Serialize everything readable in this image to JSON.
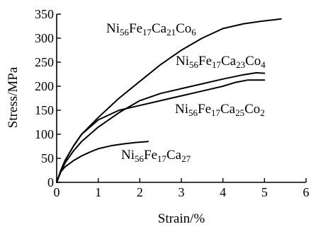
{
  "chart_data": {
    "type": "line",
    "xlabel": "Strain/%",
    "ylabel": "Stress/MPa",
    "xlim": [
      0,
      6
    ],
    "ylim": [
      0,
      350
    ],
    "x_ticks": [
      0,
      1,
      2,
      3,
      4,
      5,
      6
    ],
    "y_ticks": [
      0,
      50,
      100,
      150,
      200,
      250,
      300,
      350
    ],
    "grid": false,
    "legend": "none",
    "series": [
      {
        "id": "ca21",
        "label_parts": [
          [
            "Ni",
            ""
          ],
          [
            "56",
            "sub"
          ],
          [
            "Fe",
            ""
          ],
          [
            "17",
            "sub"
          ],
          [
            "Ca",
            ""
          ],
          [
            "21",
            "sub"
          ],
          [
            "Co",
            ""
          ],
          [
            "6",
            "sub"
          ]
        ],
        "x": [
          0,
          0.1,
          0.2,
          0.4,
          0.6,
          1.0,
          1.5,
          2.0,
          2.5,
          3.0,
          3.5,
          4.0,
          4.5,
          4.9,
          5.2,
          5.4
        ],
        "y": [
          0,
          25,
          45,
          75,
          100,
          135,
          175,
          210,
          245,
          275,
          300,
          320,
          330,
          335,
          338,
          340
        ]
      },
      {
        "id": "ca23",
        "label_parts": [
          [
            "Ni",
            ""
          ],
          [
            "56",
            "sub"
          ],
          [
            "Fe",
            ""
          ],
          [
            "17",
            "sub"
          ],
          [
            "Ca",
            ""
          ],
          [
            "23",
            "sub"
          ],
          [
            "Co",
            ""
          ],
          [
            "4",
            "sub"
          ]
        ],
        "x": [
          0,
          0.1,
          0.2,
          0.4,
          0.6,
          1.0,
          1.5,
          2.0,
          2.5,
          3.0,
          3.5,
          4.0,
          4.5,
          4.8,
          5.0
        ],
        "y": [
          0,
          22,
          40,
          65,
          85,
          115,
          145,
          170,
          185,
          195,
          205,
          215,
          224,
          228,
          227
        ]
      },
      {
        "id": "ca25",
        "label_parts": [
          [
            "Ni",
            ""
          ],
          [
            "56",
            "sub"
          ],
          [
            "Fe",
            ""
          ],
          [
            "17",
            "sub"
          ],
          [
            "Ca",
            ""
          ],
          [
            "25",
            "sub"
          ],
          [
            "Co",
            ""
          ],
          [
            "2",
            "sub"
          ]
        ],
        "x": [
          0,
          0.1,
          0.2,
          0.4,
          0.6,
          1.0,
          1.5,
          2.0,
          2.5,
          3.0,
          3.5,
          4.0,
          4.3,
          4.6,
          5.0
        ],
        "y": [
          0,
          25,
          45,
          75,
          100,
          130,
          150,
          160,
          170,
          180,
          190,
          200,
          208,
          213,
          213
        ]
      },
      {
        "id": "ca27",
        "label_parts": [
          [
            "Ni",
            ""
          ],
          [
            "56",
            "sub"
          ],
          [
            "Fe",
            ""
          ],
          [
            "17",
            "sub"
          ],
          [
            "Ca",
            ""
          ],
          [
            "27",
            "sub"
          ]
        ],
        "x": [
          0,
          0.05,
          0.1,
          0.2,
          0.4,
          0.6,
          0.8,
          1.0,
          1.3,
          1.6,
          1.9,
          2.2
        ],
        "y": [
          0,
          12,
          22,
          32,
          45,
          55,
          63,
          70,
          76,
          80,
          83,
          85
        ]
      }
    ]
  }
}
